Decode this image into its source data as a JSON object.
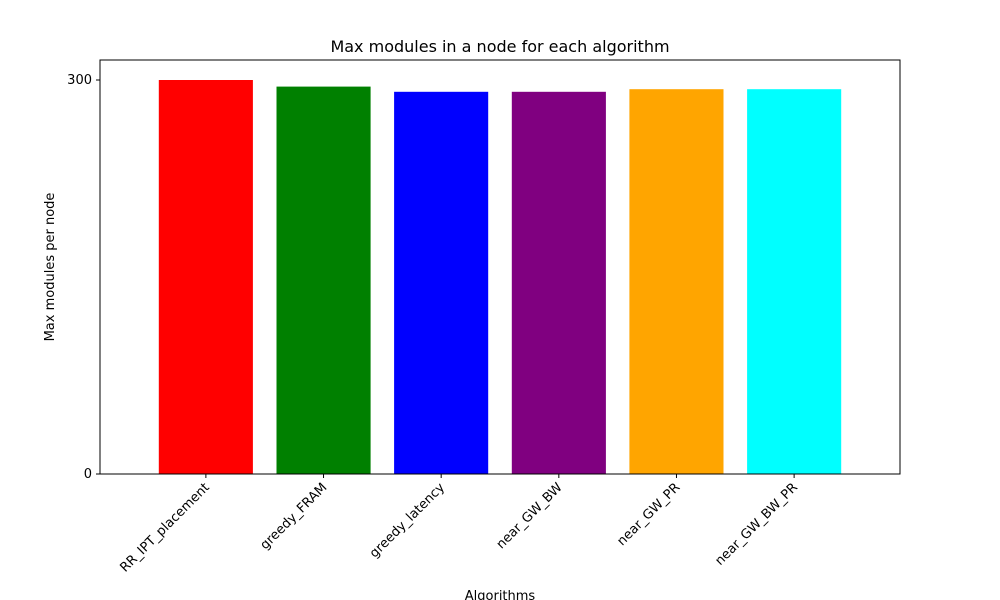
{
  "chart_data": {
    "type": "bar",
    "title": "Max modules in a node for each algorithm",
    "xlabel": "Algorithms",
    "ylabel": "Max modules per node",
    "categories": [
      "RR_IPT_placement",
      "greedy_FRAM",
      "greedy_latency",
      "near_GW_BW",
      "near_GW_PR",
      "near_GW_BW_PR"
    ],
    "values": [
      300,
      295,
      291,
      291,
      293,
      293
    ],
    "colors": [
      "#ff0000",
      "#008000",
      "#0000ff",
      "#800080",
      "#ffa500",
      "#00ffff"
    ],
    "ylim": [
      0,
      300
    ],
    "y_ticks_visible": [
      "0",
      "300"
    ],
    "grid": false,
    "legend": "none"
  }
}
